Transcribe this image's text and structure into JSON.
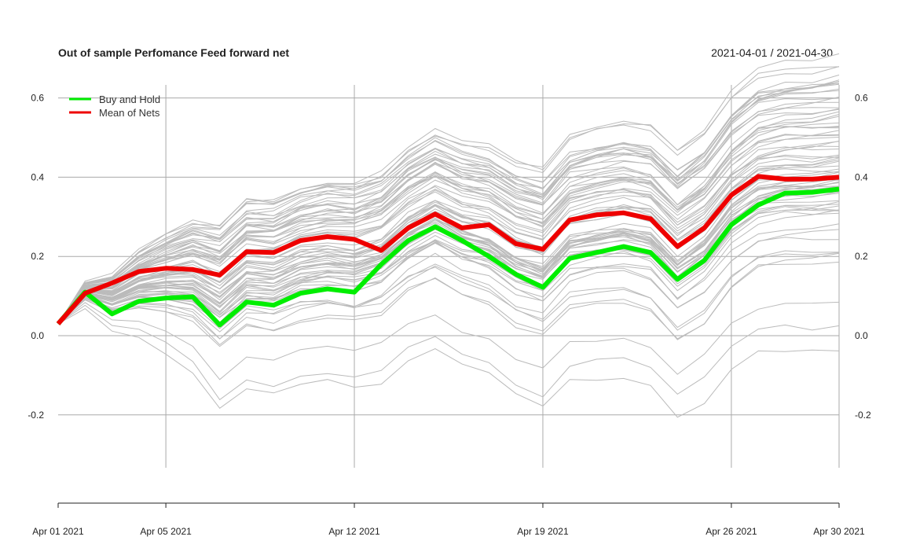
{
  "chart_data": {
    "type": "line",
    "title": "Out of sample Perfomance Feed forward net",
    "date_range": "2021-04-01 / 2021-04-30",
    "x": [
      "2021-04-01",
      "2021-04-02",
      "2021-04-03",
      "2021-04-04",
      "2021-04-05",
      "2021-04-06",
      "2021-04-07",
      "2021-04-08",
      "2021-04-09",
      "2021-04-10",
      "2021-04-11",
      "2021-04-12",
      "2021-04-13",
      "2021-04-14",
      "2021-04-15",
      "2021-04-16",
      "2021-04-17",
      "2021-04-18",
      "2021-04-19",
      "2021-04-20",
      "2021-04-21",
      "2021-04-22",
      "2021-04-23",
      "2021-04-24",
      "2021-04-25",
      "2021-04-26",
      "2021-04-27",
      "2021-04-28",
      "2021-04-29",
      "2021-04-30"
    ],
    "x_tick_labels": [
      {
        "date": "2021-04-01",
        "label": "Apr 01 2021"
      },
      {
        "date": "2021-04-05",
        "label": "Apr 05 2021"
      },
      {
        "date": "2021-04-12",
        "label": "Apr 12 2021"
      },
      {
        "date": "2021-04-19",
        "label": "Apr 19 2021"
      },
      {
        "date": "2021-04-26",
        "label": "Apr 26 2021"
      },
      {
        "date": "2021-04-30",
        "label": "Apr 30 2021"
      }
    ],
    "y_ticks": [
      "-0.2",
      "0.0",
      "0.2",
      "0.4",
      "0.6"
    ],
    "ylim": [
      -0.42,
      0.63
    ],
    "grid": true,
    "legend_position": "top-left",
    "series": [
      {
        "name": "Buy and Hold",
        "color": "#00ee00",
        "values": [
          0.03,
          0.11,
          0.055,
          0.087,
          0.095,
          0.098,
          0.027,
          0.085,
          0.077,
          0.107,
          0.118,
          0.11,
          0.18,
          0.24,
          0.275,
          0.24,
          0.2,
          0.155,
          0.122,
          0.195,
          0.21,
          0.225,
          0.21,
          0.142,
          0.19,
          0.28,
          0.33,
          0.36,
          0.362,
          0.37
        ]
      },
      {
        "name": "Mean of Nets",
        "color": "#ee0000",
        "values": [
          0.03,
          0.107,
          0.133,
          0.162,
          0.17,
          0.167,
          0.153,
          0.212,
          0.21,
          0.24,
          0.25,
          0.243,
          0.215,
          0.272,
          0.307,
          0.272,
          0.28,
          0.232,
          0.218,
          0.292,
          0.305,
          0.31,
          0.295,
          0.225,
          0.272,
          0.355,
          0.402,
          0.395,
          0.395,
          0.4
        ]
      }
    ],
    "background_series_color": "#bbbbbb"
  }
}
